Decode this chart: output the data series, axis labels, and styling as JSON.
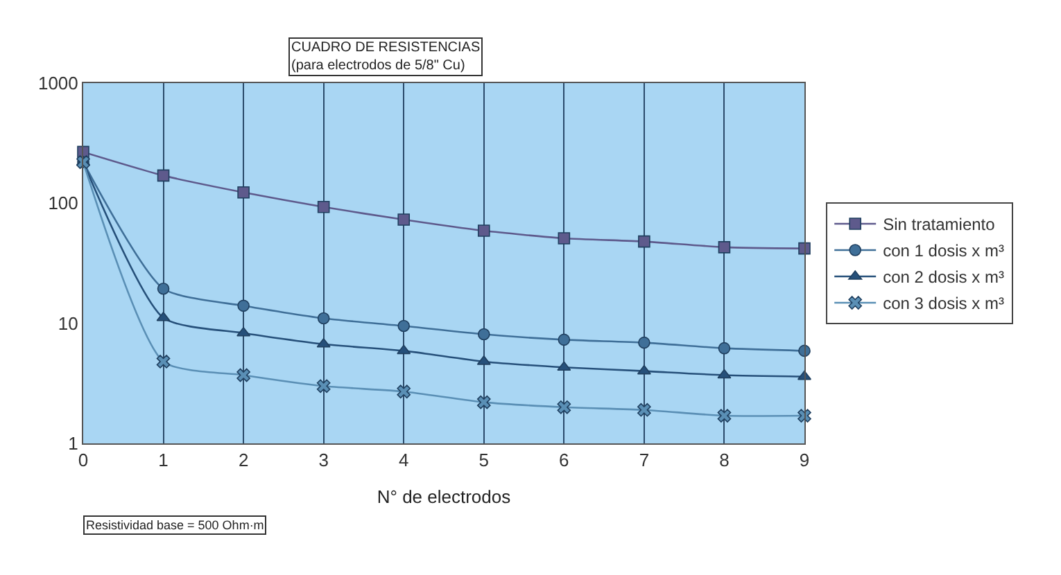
{
  "chart_data": {
    "type": "line",
    "title": "CUADRO DE RESISTENCIAS\n(para electrodos de 5/8\" Cu)",
    "xlabel": "N° de electrodos",
    "annotations": [
      "Resistividad base = 500 Ohm·m"
    ],
    "x": [
      0,
      1,
      2,
      3,
      4,
      5,
      6,
      7,
      8,
      9
    ],
    "series": [
      {
        "name": "Sin tratamiento",
        "color": "#5e5a8c",
        "marker": "square",
        "values": [
          267,
          170,
          123,
          93,
          73,
          59,
          51,
          48,
          43,
          42
        ]
      },
      {
        "name": "con 1 dosis x m³",
        "color": "#3f6f98",
        "marker": "circle",
        "values": [
          220,
          19.4,
          14,
          11,
          9.5,
          8.1,
          7.3,
          6.9,
          6.2,
          5.9
        ]
      },
      {
        "name": "con 2 dosis x m³",
        "color": "#26507a",
        "marker": "triangle",
        "values": [
          220,
          11.1,
          8.3,
          6.7,
          5.9,
          4.8,
          4.3,
          4.0,
          3.7,
          3.6
        ]
      },
      {
        "name": "con 3 dosis x m³",
        "color": "#5a8fb5",
        "marker": "cross",
        "values": [
          220,
          4.8,
          3.7,
          3.0,
          2.7,
          2.2,
          2.0,
          1.9,
          1.7,
          1.7
        ]
      }
    ],
    "log": "y",
    "ylim": [
      1,
      1000
    ],
    "yticks": [
      1,
      10,
      100,
      1000
    ],
    "xlim": [
      0,
      9
    ],
    "xticks": [
      0,
      1,
      2,
      3,
      4,
      5,
      6,
      7,
      8,
      9
    ],
    "grid": "x",
    "legend": "right",
    "line_style": "solid"
  }
}
